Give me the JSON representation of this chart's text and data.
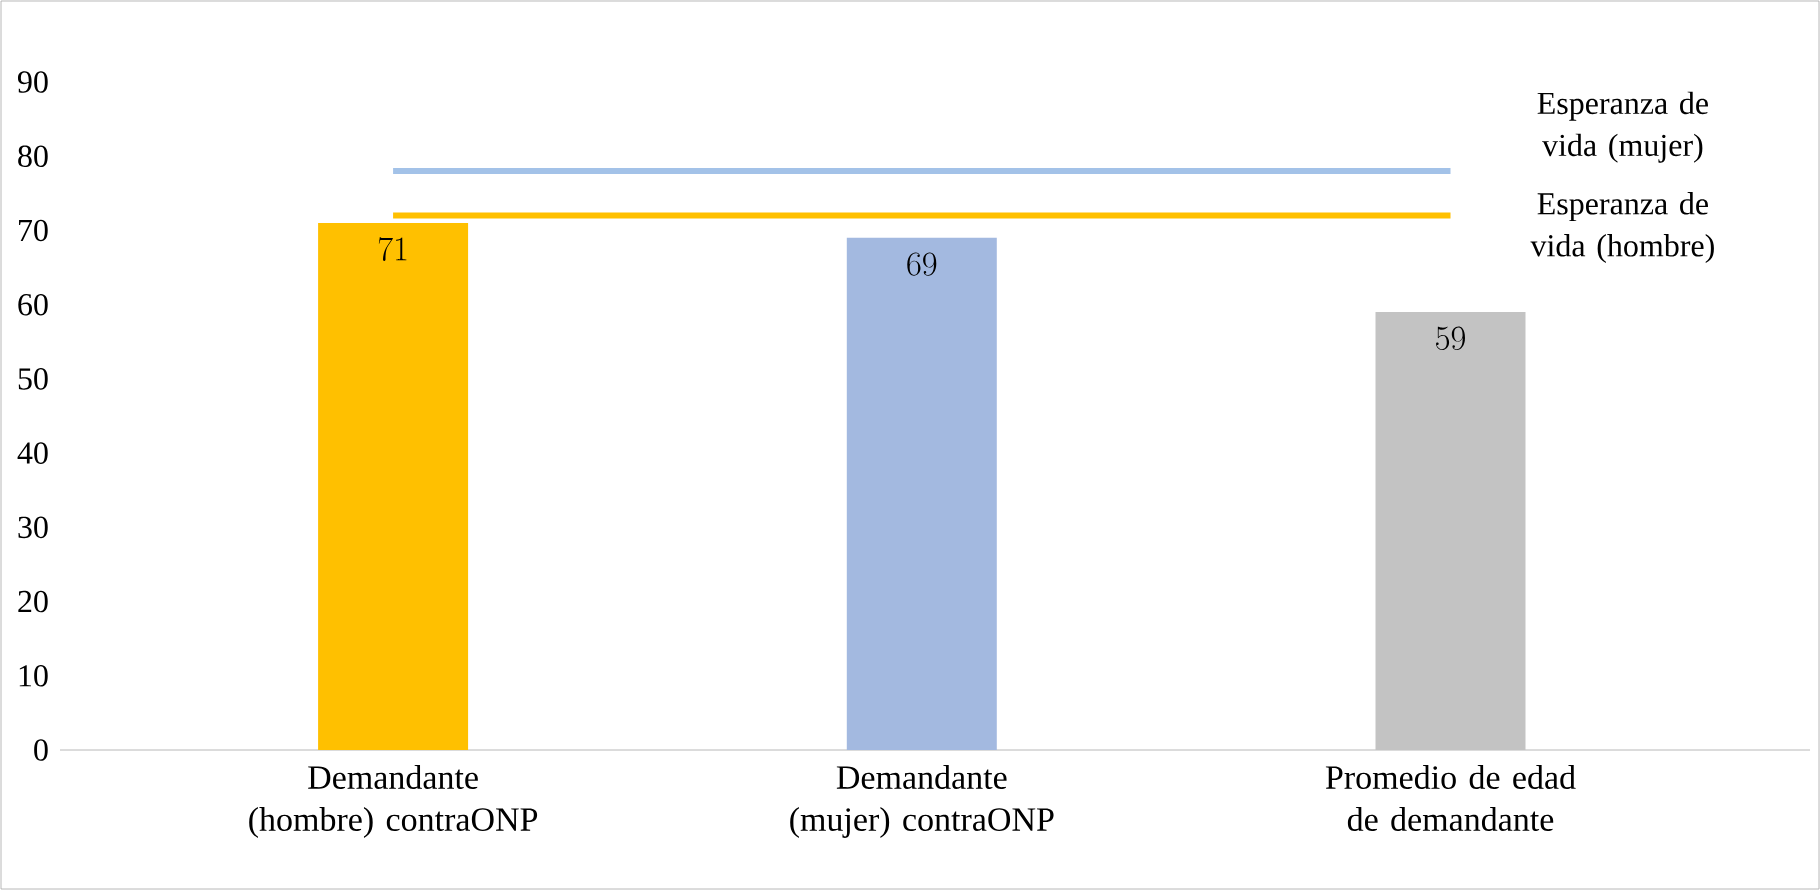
{
  "chart_data": {
    "type": "bar",
    "categories": [
      "Demandante (hombre) contraONP",
      "Demandante (mujer) contraONP",
      "Promedio de edad de demandante"
    ],
    "values": [
      71,
      69,
      59
    ],
    "colors": [
      "#ffc000",
      "#a3b9e0",
      "#c3c3c3"
    ],
    "ylim": [
      0,
      90
    ],
    "yticks": [
      0,
      10,
      20,
      30,
      40,
      50,
      60,
      70,
      80,
      90
    ],
    "data_labels": true,
    "grid": false,
    "ref_lines": [
      {
        "axis": "y",
        "value": 78,
        "label": "Esperanza de vida (mujer)",
        "color": "#a3c2e8"
      },
      {
        "axis": "y",
        "value": 72,
        "label": "Esperanza de vida (hombre)",
        "color": "#ffc000"
      }
    ]
  }
}
